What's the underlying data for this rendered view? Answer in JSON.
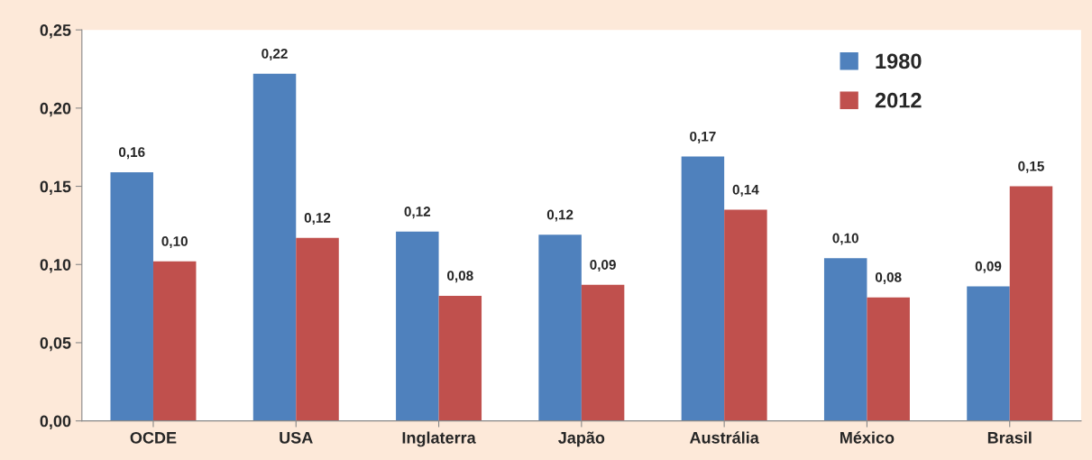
{
  "chart_data": {
    "type": "bar",
    "categories": [
      "OCDE",
      "USA",
      "Inglaterra",
      "Japão",
      "Austrália",
      "México",
      "Brasil"
    ],
    "series": [
      {
        "name": "1980",
        "color": "#4f81bd",
        "values": [
          0.159,
          0.222,
          0.121,
          0.119,
          0.169,
          0.104,
          0.086
        ],
        "value_labels": [
          "0,16",
          "0,22",
          "0,12",
          "0,12",
          "0,17",
          "0,10",
          "0,09"
        ]
      },
      {
        "name": "2012",
        "color": "#c0504d",
        "values": [
          0.102,
          0.117,
          0.08,
          0.087,
          0.135,
          0.079,
          0.15
        ],
        "value_labels": [
          "0,10",
          "0,12",
          "0,08",
          "0,09",
          "0,14",
          "0,08",
          "0,15"
        ]
      }
    ],
    "ylim": [
      0,
      0.25
    ],
    "yticks": [
      {
        "value": 0,
        "label": "0,00"
      },
      {
        "value": 0.05,
        "label": "0,05"
      },
      {
        "value": 0.1,
        "label": "0,10"
      },
      {
        "value": 0.15,
        "label": "0,15"
      },
      {
        "value": 0.2,
        "label": "0,20"
      },
      {
        "value": 0.25,
        "label": "0,25"
      }
    ],
    "grid": false,
    "legend": "top right"
  }
}
